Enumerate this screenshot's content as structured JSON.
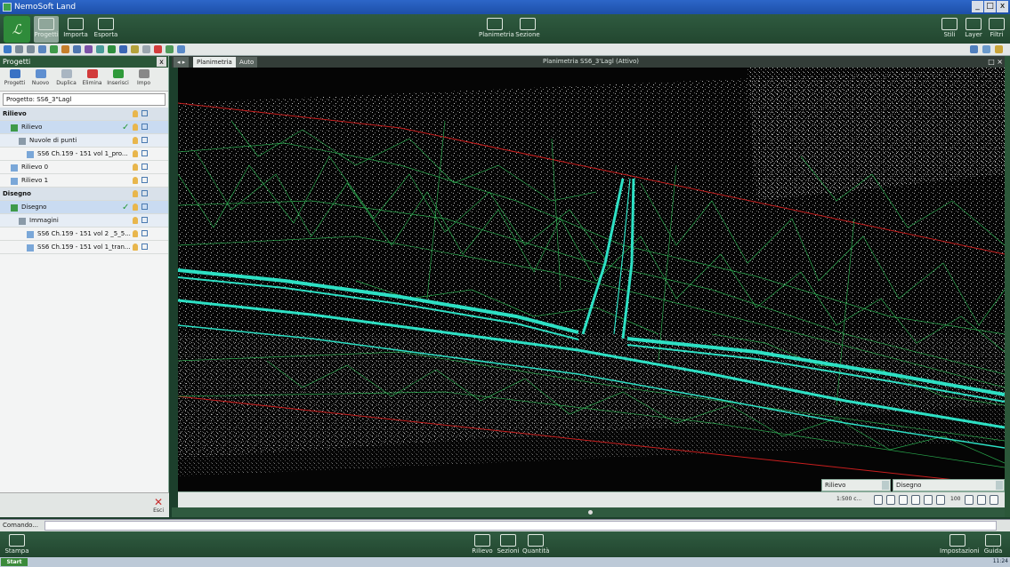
{
  "window": {
    "title": "NemoSoft Land",
    "controls": [
      "_",
      "□",
      "x"
    ]
  },
  "ribbon": {
    "logo_text": "ℒ",
    "left_buttons": [
      {
        "label": "Progetti"
      },
      {
        "label": "Importa"
      },
      {
        "label": "Esporta"
      }
    ],
    "center_buttons": [
      {
        "label": "Planimetria"
      },
      {
        "label": "Sezione"
      }
    ],
    "right_buttons": [
      {
        "label": "Stili"
      },
      {
        "label": "Layer"
      },
      {
        "label": "Filtri"
      }
    ]
  },
  "project_panel": {
    "title": "Progetti",
    "close": "x",
    "tools": [
      {
        "label": "Progetti",
        "icon": "back-arrow-icon",
        "color": "#3a72c4"
      },
      {
        "label": "Nuovo",
        "icon": "new-file-icon",
        "color": "#5e8fd0"
      },
      {
        "label": "Duplica",
        "icon": "copy-icon",
        "color": "#a9b6c2"
      },
      {
        "label": "Elimina",
        "icon": "delete-icon",
        "color": "#d23b3b"
      },
      {
        "label": "Inserisci",
        "icon": "plus-icon",
        "color": "#2f9a3a"
      },
      {
        "label": "Impo",
        "icon": "settings-icon",
        "color": "#888888"
      }
    ],
    "project_field": "Progetto: SS6_3\"Lagl",
    "tree": [
      {
        "type": "section",
        "label": "Rilievo",
        "indent": 0
      },
      {
        "type": "layer",
        "label": "Rilievo",
        "indent": 1,
        "checked": true,
        "selected": true
      },
      {
        "type": "group",
        "label": "Nuvole di punti",
        "indent": 2
      },
      {
        "type": "item",
        "label": "SS6 Ch.159 - 151 vol 1_pro...",
        "indent": 3
      },
      {
        "type": "item",
        "label": "Rilievo 0",
        "indent": 1
      },
      {
        "type": "item",
        "label": "Rilievo 1",
        "indent": 1
      },
      {
        "type": "section",
        "label": "Disegno",
        "indent": 0
      },
      {
        "type": "layer",
        "label": "Disegno",
        "indent": 1,
        "checked": true,
        "selected": true
      },
      {
        "type": "group",
        "label": "Immagini",
        "indent": 2
      },
      {
        "type": "item",
        "label": "SS6 Ch.159 - 151 vol 2 _5_5...",
        "indent": 3
      },
      {
        "type": "item",
        "label": "SS6 Ch.159 - 151 vol 1_tran...",
        "indent": 3
      }
    ],
    "exit_label": "Esci"
  },
  "document": {
    "tabs": [
      {
        "label": "Planimetria",
        "active": true
      },
      {
        "label": "Auto",
        "active": false
      }
    ],
    "view_title": "Planimetria SS6_3'Lagl (Attivo)",
    "view_controls": "□ ×"
  },
  "statusbar": {
    "combo_left": "Rilievo",
    "combo_right": "Disegno",
    "zoom_text": "1:500 c...",
    "zoom_value": "100"
  },
  "command": {
    "label": "Comando..."
  },
  "bottom_ribbon": {
    "left": [
      {
        "label": "Stampa"
      }
    ],
    "center": [
      {
        "label": "Rilievo"
      },
      {
        "label": "Sezioni"
      },
      {
        "label": "Quantità"
      }
    ],
    "right": [
      {
        "label": "Impostazioni"
      },
      {
        "label": "Guida"
      }
    ]
  },
  "taskbar": {
    "start": "Start",
    "clock": "11:24"
  },
  "colors": {
    "ribbon": "#2b5739",
    "breakline_cyan": "#2de0c4",
    "tin_green": "#2fc65a",
    "boundary_red": "#c81e1e"
  }
}
